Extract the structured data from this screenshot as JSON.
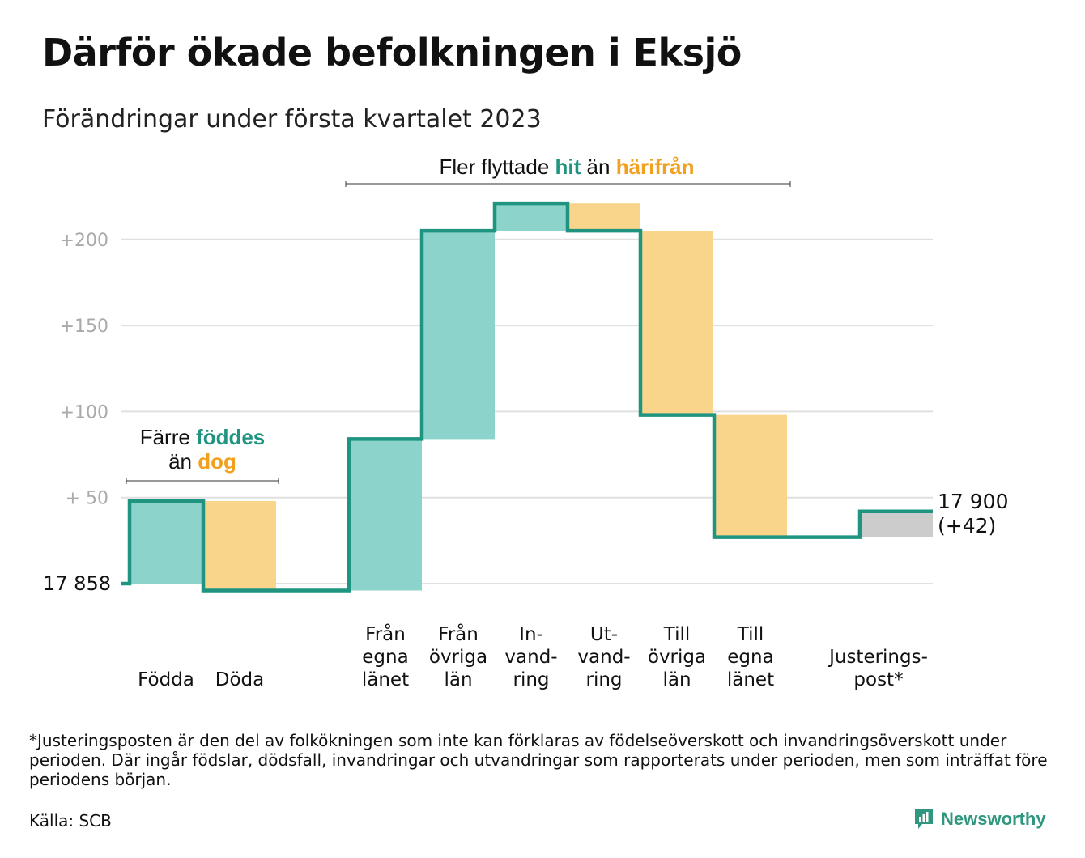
{
  "title": "Därför ökade befolkningen i Eksjö",
  "subtitle": "Förändringar under första kvartalet 2023",
  "colors": {
    "inflow": "#8cd4cb",
    "outflow": "#f9d58c",
    "adjustment": "#cccccc",
    "line": "#1f9480",
    "teal_text": "#1f9480",
    "orange_text": "#f2a01e",
    "grid": "#e0e0e0",
    "tick_text": "#aaaaaa"
  },
  "annotations": {
    "births": {
      "line1_prefix": "Färre ",
      "line1_highlight": "föddes",
      "line2_prefix": "än ",
      "line2_highlight": "dog"
    },
    "migration": {
      "prefix": "Fler flyttade ",
      "highlight1": "hit",
      "middle": " än ",
      "highlight2": "härifrån"
    }
  },
  "start_label": "17 858",
  "end_label": {
    "line1": "17 900",
    "line2": "(+42)"
  },
  "chart_data": {
    "type": "bar",
    "subtype": "waterfall",
    "title": "Därför ökade befolkningen i Eksjö",
    "subtitle": "Förändringar under första kvartalet 2023",
    "start_value": 17858,
    "end_value": 17900,
    "net_change": 42,
    "ylim": [
      -4,
      222
    ],
    "y_ticks": [
      {
        "value": 0,
        "label": ""
      },
      {
        "value": 50,
        "label": "+ 50"
      },
      {
        "value": 100,
        "label": "+100"
      },
      {
        "value": 150,
        "label": "+150"
      },
      {
        "value": 200,
        "label": "+200"
      }
    ],
    "grid": true,
    "categories": [
      {
        "label": [
          "",
          "",
          "Födda"
        ],
        "value": 48,
        "kind": "inflow"
      },
      {
        "label": [
          "",
          "",
          "Döda"
        ],
        "value": -52,
        "kind": "outflow"
      },
      {
        "label": [
          "Från",
          "egna",
          "länet"
        ],
        "value": 88,
        "kind": "inflow"
      },
      {
        "label": [
          "Från",
          "övriga",
          "län"
        ],
        "value": 121,
        "kind": "inflow"
      },
      {
        "label": [
          "In-",
          "vand-",
          "ring"
        ],
        "value": 16,
        "kind": "inflow"
      },
      {
        "label": [
          "Ut-",
          "vand-",
          "ring"
        ],
        "value": -16,
        "kind": "outflow"
      },
      {
        "label": [
          "Till",
          "övriga",
          "län"
        ],
        "value": -107,
        "kind": "outflow"
      },
      {
        "label": [
          "Till",
          "egna",
          "länet"
        ],
        "value": -71,
        "kind": "outflow"
      },
      {
        "label": [
          "",
          "Justerings-",
          "post*"
        ],
        "value": 15,
        "kind": "adjustment"
      }
    ]
  },
  "footnote": "*Justeringsposten är den del av folkökningen som inte kan förklaras av födelseöverskott och invandringsöverskott under perioden. Där ingår födslar, dödsfall, invandringar och utvandringar som rapporterats under perioden, men som inträffat före periodens början.",
  "source": "Källa: SCB",
  "brand": "Newsworthy"
}
